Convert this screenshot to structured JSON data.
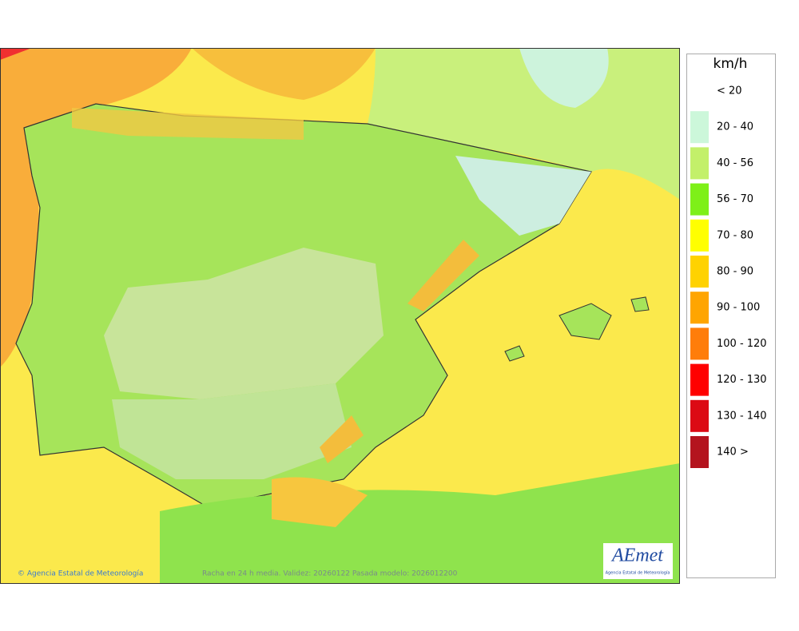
{
  "legend": {
    "unit": "km/h",
    "items": [
      {
        "label": "< 20",
        "color": "#ffffff"
      },
      {
        "label": "20 - 40",
        "color": "#ccf7da"
      },
      {
        "label": "40 - 56",
        "color": "#c3f06a"
      },
      {
        "label": "56 - 70",
        "color": "#7ef018"
      },
      {
        "label": "70 - 80",
        "color": "#ffff00"
      },
      {
        "label": "80 - 90",
        "color": "#ffd200"
      },
      {
        "label": "90 - 100",
        "color": "#ffa500"
      },
      {
        "label": "100 - 120",
        "color": "#ff7d0a"
      },
      {
        "label": "120 - 130",
        "color": "#ff0000"
      },
      {
        "label": "130 - 140",
        "color": "#dc0a14"
      },
      {
        "label": "140 >",
        "color": "#b4141e"
      }
    ]
  },
  "footer": {
    "credit": "© Agencia Estatal de Meteorología",
    "caption": "Racha en 24 h media. Validez: 20260122 Pasada modelo: 2026012200"
  },
  "logo": {
    "name": "AEmet",
    "subtitle": "Agencia Estatal de Meteorología"
  }
}
